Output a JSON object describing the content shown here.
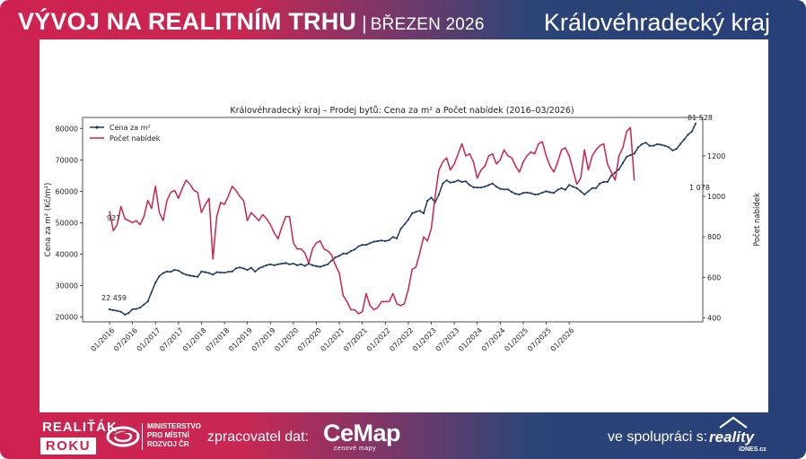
{
  "header": {
    "title": "VÝVOJ NA REALITNÍM TRHU",
    "separator": "|",
    "date": "BŘEZEN 2026",
    "region": "Královéhradecký kraj"
  },
  "footer": {
    "logo_line1": "REALIŤÁK",
    "logo_line2": "ROKU",
    "ministry_line1": "MINISTERSTVO",
    "ministry_line2": "PRO MÍSTNÍ",
    "ministry_line3": "ROZVOJ ČR",
    "processor_label": "zpracovatel dat:",
    "processor_name": "CeMap",
    "processor_sub": "cenové mapy",
    "cooperation_label": "ve spolupráci s:",
    "partner_name": "reality",
    "partner_sub": "iDNES.cz"
  },
  "colors": {
    "price": "#1f3a64",
    "listings": "#c8244f"
  },
  "chart_data": {
    "type": "line",
    "title": "Královéhradecký kraj – Prodej bytů: Cena za m² a Počet nabídek (2016–03/2026)",
    "ylabel_left": "Cena za m² (Kč/m²)",
    "ylabel_right": "Počet nabídek",
    "ylim_left": [
      18500,
      83500
    ],
    "ylim_right": [
      380,
      1390
    ],
    "yticks_left": [
      20000,
      30000,
      40000,
      50000,
      60000,
      70000,
      80000
    ],
    "yticks_right": [
      400,
      600,
      800,
      1000,
      1200
    ],
    "xticks": [
      "01/2016",
      "07/2016",
      "01/2017",
      "07/2017",
      "01/2018",
      "07/2018",
      "01/2019",
      "07/2019",
      "01/2020",
      "07/2020",
      "01/2021",
      "07/2021",
      "01/2022",
      "07/2022",
      "01/2023",
      "07/2023",
      "01/2024",
      "07/2024",
      "01/2025",
      "07/2025",
      "01/2026"
    ],
    "legend": [
      "Cena za m²",
      "Počet nabídek"
    ],
    "annotations": {
      "price_start": "22 459",
      "price_end": "81 528",
      "listings_start": "927",
      "listings_end": "1 078"
    },
    "series": [
      {
        "name": "Cena za m²",
        "axis": "left",
        "values": [
          22459,
          22200,
          22000,
          21700,
          20800,
          21300,
          22500,
          22600,
          23000,
          24000,
          25000,
          28000,
          31000,
          33000,
          34000,
          34500,
          34400,
          35000,
          34800,
          34000,
          33500,
          33200,
          33000,
          32800,
          34500,
          34300,
          34000,
          33500,
          34300,
          34200,
          34100,
          34400,
          34500,
          35500,
          35800,
          35500,
          35000,
          35700,
          34500,
          35500,
          36000,
          36500,
          36800,
          36500,
          36800,
          37000,
          37200,
          36800,
          37000,
          36500,
          36800,
          36300,
          37000,
          36500,
          36200,
          36000,
          36400,
          36800,
          38000,
          39000,
          39500,
          40200,
          40200,
          41000,
          41500,
          42500,
          43000,
          43000,
          43500,
          44000,
          44200,
          44400,
          44200,
          44500,
          45500,
          45000,
          48000,
          49500,
          51000,
          53000,
          53500,
          53800,
          53000,
          57000,
          58000,
          56500,
          59000,
          62500,
          63500,
          62800,
          63000,
          63500,
          63000,
          63200,
          62000,
          61300,
          61200,
          61200,
          61500,
          62000,
          62500,
          61500,
          60800,
          60600,
          60600,
          59800,
          59200,
          59000,
          59500,
          59600,
          59400,
          59000,
          59100,
          59600,
          60000,
          59700,
          59500,
          60500,
          61000,
          60500,
          62000,
          61500,
          61000,
          60000,
          59000,
          60000,
          61000,
          61000,
          62500,
          63000,
          63000,
          65000,
          66000,
          67000,
          69000,
          71000,
          71500,
          72000,
          74000,
          75000,
          75500,
          74500,
          74500,
          75000,
          74800,
          74500,
          74000,
          73000,
          73500,
          75000,
          76500,
          78000,
          79000,
          81528
        ]
      },
      {
        "name": "Počet nabídek",
        "axis": "right",
        "values": [
          927,
          830,
          860,
          950,
          890,
          880,
          870,
          880,
          860,
          900,
          980,
          940,
          1050,
          920,
          880,
          980,
          1020,
          1030,
          990,
          1040,
          1080,
          1060,
          1030,
          1020,
          920,
          960,
          990,
          690,
          900,
          970,
          960,
          1000,
          1050,
          1030,
          1000,
          980,
          880,
          920,
          900,
          880,
          910,
          890,
          860,
          820,
          790,
          850,
          900,
          900,
          770,
          740,
          740,
          720,
          670,
          740,
          770,
          780,
          740,
          730,
          710,
          660,
          620,
          510,
          480,
          440,
          440,
          420,
          430,
          520,
          460,
          440,
          450,
          480,
          480,
          480,
          520,
          470,
          460,
          470,
          540,
          640,
          650,
          720,
          800,
          780,
          840,
          1000,
          1130,
          1170,
          1190,
          1130,
          1160,
          1210,
          1260,
          1200,
          1210,
          1170,
          1090,
          1130,
          1150,
          1200,
          1210,
          1160,
          1180,
          1230,
          1200,
          1190,
          1150,
          1120,
          1170,
          1200,
          1220,
          1210,
          1260,
          1270,
          1200,
          1150,
          1120,
          1170,
          1230,
          1240,
          1200,
          1130,
          1060,
          1090,
          1230,
          1130,
          1200,
          1230,
          1250,
          1260,
          1160,
          1120,
          1080,
          1200,
          1240,
          1320,
          1340,
          1078
        ]
      }
    ]
  }
}
